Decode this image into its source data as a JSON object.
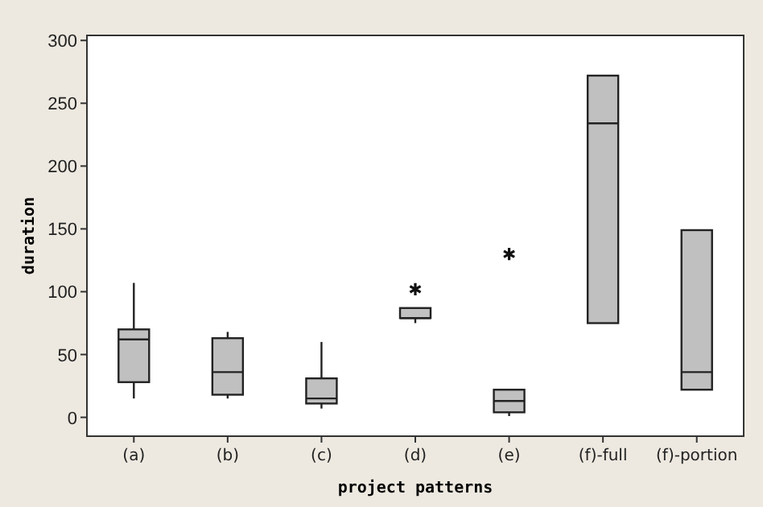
{
  "chart_data": {
    "type": "box",
    "xlabel": "project patterns",
    "ylabel": "duration",
    "categories": [
      "(a)",
      "(b)",
      "(c)",
      "(d)",
      "(e)",
      "(f)-full",
      "(f)-portion"
    ],
    "boxes": [
      {
        "low": 15,
        "q1": 28,
        "median": 62,
        "q3": 70,
        "high": 107
      },
      {
        "low": 15,
        "q1": 18,
        "median": 36,
        "q3": 63,
        "high": 68
      },
      {
        "low": 7,
        "q1": 11,
        "median": 15,
        "q3": 31,
        "high": 60
      },
      {
        "low": 75,
        "q1": 79,
        "median": 79,
        "q3": 87,
        "high": 87,
        "outliers": [
          102
        ]
      },
      {
        "low": 1,
        "q1": 4,
        "median": 13,
        "q3": 22,
        "high": 22,
        "outliers": [
          130
        ]
      },
      {
        "low": 75,
        "q1": 75,
        "median": 234,
        "q3": 272,
        "high": 272
      },
      {
        "low": 22,
        "q1": 22,
        "median": 36,
        "q3": 149,
        "high": 149
      }
    ],
    "color": "#c0c0c0",
    "ylim": [
      -15,
      304
    ],
    "yticks": [
      0,
      50,
      100,
      150,
      200,
      250,
      300
    ]
  }
}
